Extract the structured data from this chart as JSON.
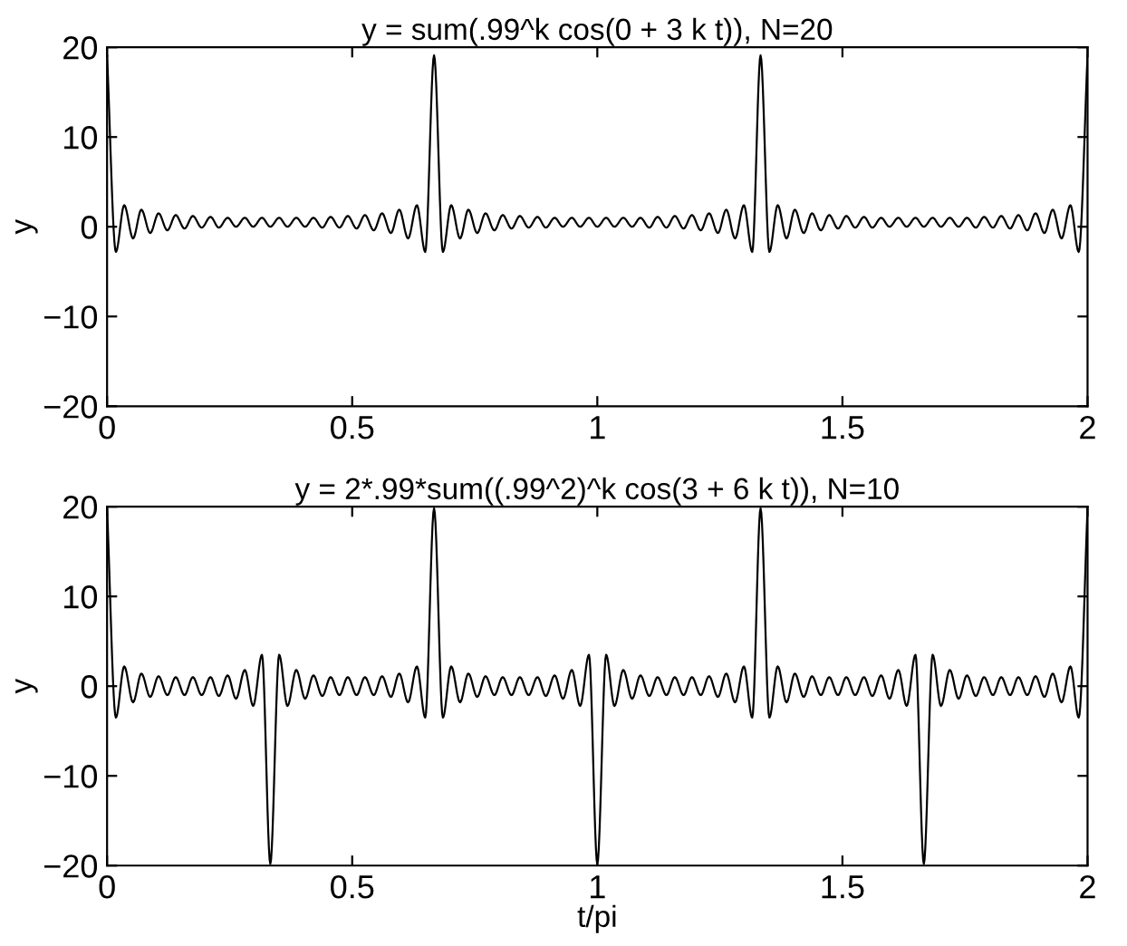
{
  "chart_data": [
    {
      "type": "line",
      "title": "y = sum(.99^k cos(0 + 3 k t)), N=20",
      "ylabel": "y",
      "xlim": [
        0,
        2
      ],
      "ylim": [
        -20,
        20
      ],
      "xticks": [
        0,
        0.5,
        1,
        1.5,
        2
      ],
      "yticks": [
        -20,
        -10,
        0,
        10,
        20
      ],
      "grid": false,
      "legend": false,
      "marker": "none",
      "line_style": "solid",
      "x": [
        0,
        0.018,
        0.035,
        0.053,
        0.07,
        0.088,
        0.105,
        0.123,
        0.14,
        0.158,
        0.175,
        0.193,
        0.211,
        0.228,
        0.246,
        0.263,
        0.281,
        0.298,
        0.316,
        0.333,
        0.351,
        0.368,
        0.386,
        0.404,
        0.421,
        0.439,
        0.456,
        0.474,
        0.491,
        0.509,
        0.526,
        0.544,
        0.561,
        0.579,
        0.596,
        0.614,
        0.632,
        0.649,
        0.667,
        0.685,
        0.702,
        0.72,
        0.737,
        0.755,
        0.772,
        0.79,
        0.807,
        0.825,
        0.842,
        0.86,
        0.878,
        0.895,
        0.913,
        0.93,
        0.948,
        0.965,
        0.983,
        1.0,
        1.018,
        1.035,
        1.053,
        1.071,
        1.088,
        1.106,
        1.123,
        1.141,
        1.158,
        1.176,
        1.193,
        1.211,
        1.228,
        1.246,
        1.263,
        1.281,
        1.299,
        1.316,
        1.333,
        1.351,
        1.368,
        1.386,
        1.403,
        1.421,
        1.438,
        1.456,
        1.473,
        1.491,
        1.508,
        1.526,
        1.544,
        1.561,
        1.579,
        1.596,
        1.614,
        1.631,
        1.649,
        1.666,
        1.684,
        1.701,
        1.719,
        1.737,
        1.754,
        1.772,
        1.789,
        1.807,
        1.824,
        1.842,
        1.859,
        1.877,
        1.894,
        1.912,
        1.929,
        1.947,
        1.965,
        1.982,
        2.0
      ],
      "series": [
        {
          "color": "#000000",
          "values": [
            19.1,
            -2.8,
            2.4,
            -1.3,
            1.9,
            -0.7,
            1.5,
            -0.4,
            1.3,
            -0.2,
            1.2,
            -0.1,
            1.1,
            -0.1,
            1.0,
            0.0,
            1.0,
            0.0,
            1.0,
            0.0,
            1.0,
            0.0,
            1.0,
            0.0,
            1.0,
            -0.1,
            1.1,
            -0.1,
            1.2,
            -0.2,
            1.3,
            -0.4,
            1.5,
            -0.7,
            1.9,
            -1.3,
            2.4,
            -2.8,
            19.1,
            -2.8,
            2.4,
            -1.3,
            1.9,
            -0.7,
            1.5,
            -0.4,
            1.3,
            -0.2,
            1.2,
            -0.1,
            1.1,
            -0.1,
            1.0,
            0.0,
            1.0,
            0.0,
            1.0,
            0.0,
            1.0,
            0.0,
            1.0,
            0.0,
            1.0,
            -0.1,
            1.1,
            -0.1,
            1.2,
            -0.2,
            1.3,
            -0.4,
            1.5,
            -0.7,
            1.9,
            -1.3,
            2.4,
            -2.8,
            19.1,
            -2.8,
            2.4,
            -1.3,
            1.9,
            -0.7,
            1.5,
            -0.4,
            1.3,
            -0.2,
            1.2,
            -0.1,
            1.1,
            -0.1,
            1.0,
            0.0,
            1.0,
            0.0,
            1.0,
            0.0,
            1.0,
            0.0,
            1.0,
            0.0,
            1.0,
            -0.1,
            1.1,
            -0.1,
            1.2,
            -0.2,
            1.3,
            -0.4,
            1.5,
            -0.7,
            1.9,
            -1.3,
            2.4,
            -2.8,
            19.1
          ]
        }
      ]
    },
    {
      "type": "line",
      "title": "y = 2*.99*sum((.99^2)^k cos(3 + 6 k t)), N=10",
      "xlabel": "t/pi",
      "ylabel": "y",
      "xlim": [
        0,
        2
      ],
      "ylim": [
        -20,
        20
      ],
      "xticks": [
        0,
        0.5,
        1,
        1.5,
        2
      ],
      "yticks": [
        -20,
        -10,
        0,
        10,
        20
      ],
      "grid": false,
      "legend": false,
      "marker": "none",
      "line_style": "solid",
      "x": [
        0,
        0.018,
        0.035,
        0.053,
        0.07,
        0.088,
        0.105,
        0.123,
        0.14,
        0.158,
        0.175,
        0.193,
        0.211,
        0.228,
        0.246,
        0.263,
        0.281,
        0.298,
        0.316,
        0.333,
        0.351,
        0.368,
        0.386,
        0.404,
        0.421,
        0.439,
        0.456,
        0.474,
        0.491,
        0.509,
        0.526,
        0.544,
        0.561,
        0.579,
        0.596,
        0.614,
        0.632,
        0.649,
        0.667,
        0.685,
        0.702,
        0.72,
        0.737,
        0.755,
        0.772,
        0.79,
        0.807,
        0.825,
        0.842,
        0.86,
        0.878,
        0.895,
        0.913,
        0.93,
        0.948,
        0.965,
        0.983,
        1.0,
        1.018,
        1.035,
        1.053,
        1.071,
        1.088,
        1.106,
        1.123,
        1.141,
        1.158,
        1.176,
        1.193,
        1.211,
        1.228,
        1.246,
        1.263,
        1.281,
        1.299,
        1.316,
        1.333,
        1.351,
        1.368,
        1.386,
        1.403,
        1.421,
        1.438,
        1.456,
        1.473,
        1.491,
        1.508,
        1.526,
        1.544,
        1.561,
        1.579,
        1.596,
        1.614,
        1.631,
        1.649,
        1.666,
        1.684,
        1.701,
        1.719,
        1.737,
        1.754,
        1.772,
        1.789,
        1.807,
        1.824,
        1.842,
        1.859,
        1.877,
        1.894,
        1.912,
        1.929,
        1.947,
        1.965,
        1.982,
        2.0
      ],
      "series": [
        {
          "color": "#000000",
          "values": [
            19.8,
            -3.5,
            2.2,
            -1.8,
            1.4,
            -1.2,
            1.1,
            -1.0,
            1.0,
            -1.0,
            1.0,
            -1.0,
            1.0,
            -1.1,
            1.2,
            -1.4,
            1.8,
            -2.2,
            3.5,
            -19.8,
            3.5,
            -2.2,
            1.8,
            -1.4,
            1.2,
            -1.1,
            1.0,
            -1.0,
            1.0,
            -1.0,
            1.0,
            -1.0,
            1.1,
            -1.2,
            1.4,
            -1.8,
            2.2,
            -3.5,
            19.8,
            -3.5,
            2.2,
            -1.8,
            1.4,
            -1.2,
            1.1,
            -1.0,
            1.0,
            -1.0,
            1.0,
            -1.0,
            1.0,
            -1.1,
            1.2,
            -1.4,
            1.8,
            -2.2,
            3.5,
            -19.8,
            3.5,
            -2.2,
            1.8,
            -1.4,
            1.2,
            -1.1,
            1.0,
            -1.0,
            1.0,
            -1.0,
            1.0,
            -1.0,
            1.1,
            -1.2,
            1.4,
            -1.8,
            2.2,
            -3.5,
            19.8,
            -3.5,
            2.2,
            -1.8,
            1.4,
            -1.2,
            1.1,
            -1.0,
            1.0,
            -1.0,
            1.0,
            -1.0,
            1.0,
            -1.1,
            1.2,
            -1.4,
            1.8,
            -2.2,
            3.5,
            -19.8,
            3.5,
            -2.2,
            1.8,
            -1.4,
            1.2,
            -1.1,
            1.0,
            -1.0,
            1.0,
            -1.0,
            1.0,
            -1.0,
            1.1,
            -1.2,
            1.4,
            -1.8,
            2.2,
            -3.5,
            19.8
          ]
        }
      ]
    }
  ]
}
